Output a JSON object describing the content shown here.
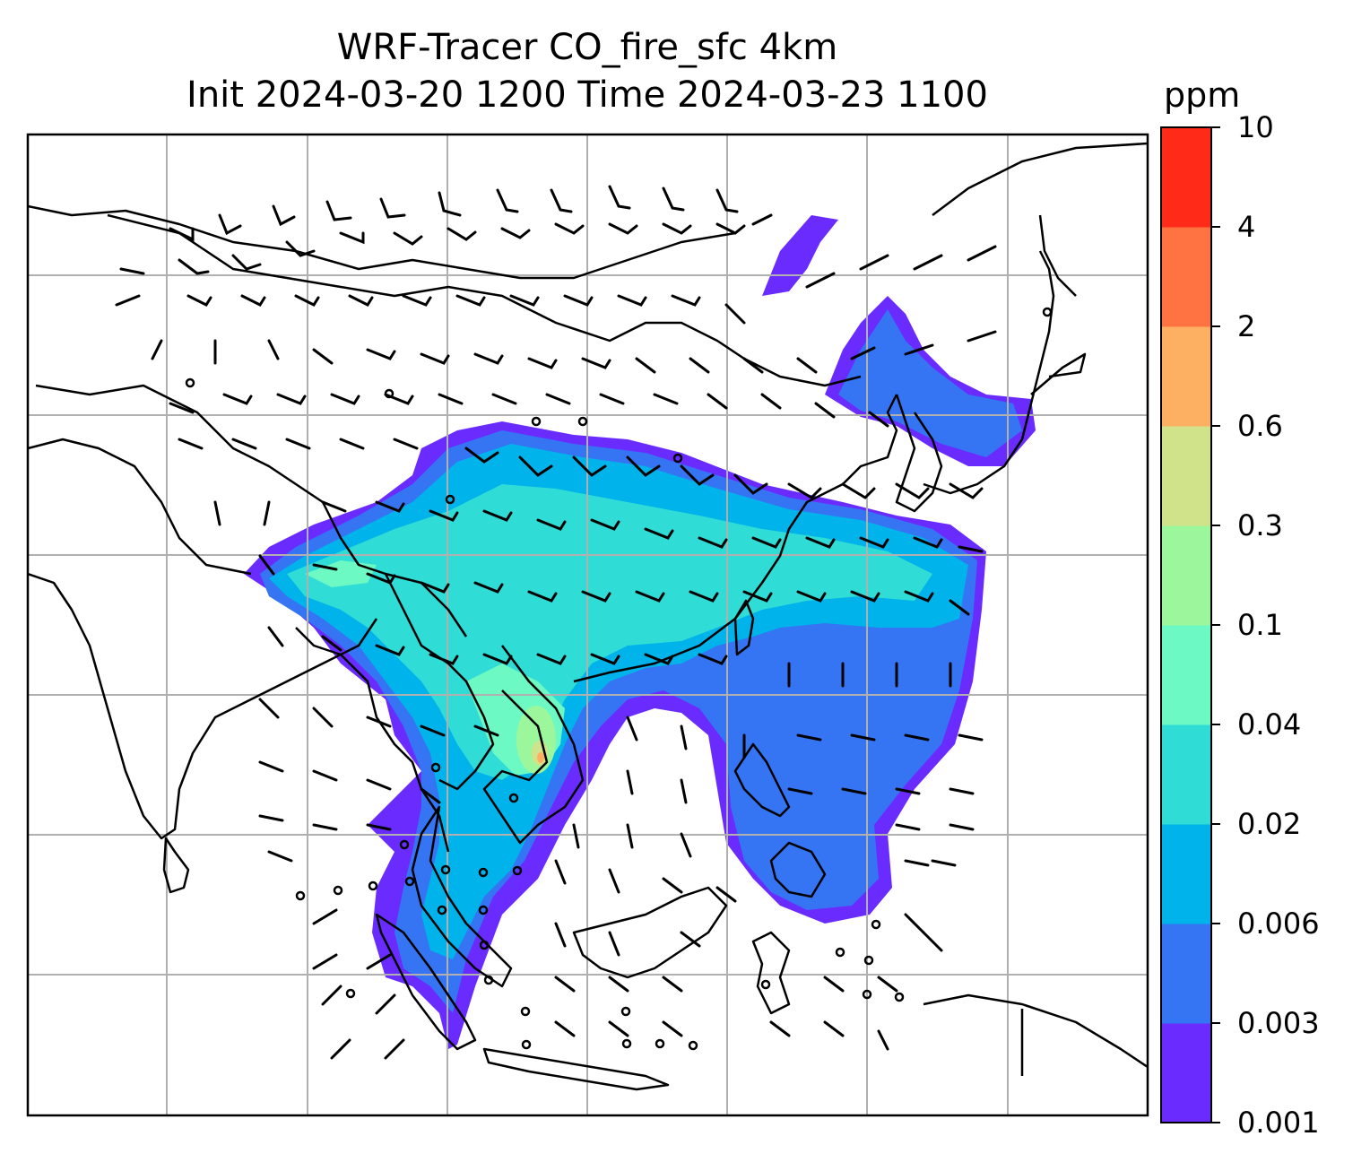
{
  "title_line1": "WRF-Tracer CO_fire_sfc 4km",
  "title_line2": "Init 2024-03-20 1200 Time 2024-03-23 1100",
  "colorbar": {
    "units": "ppm",
    "tick_labels": [
      "0.001",
      "0.003",
      "0.006",
      "0.02",
      "0.04",
      "0.1",
      "0.3",
      "0.6",
      "2",
      "4",
      "10"
    ],
    "level_colors": [
      "#6a2bff",
      "#3575f4",
      "#00b3ea",
      "#2fdcd6",
      "#6cf9c4",
      "#9cf79c",
      "#d0e28a",
      "#feb062",
      "#ff7342",
      "#ff2b18"
    ]
  },
  "map": {
    "field": "CO_fire_sfc",
    "resolution": "4km",
    "gridlines": true,
    "wind_barbs": true
  }
}
